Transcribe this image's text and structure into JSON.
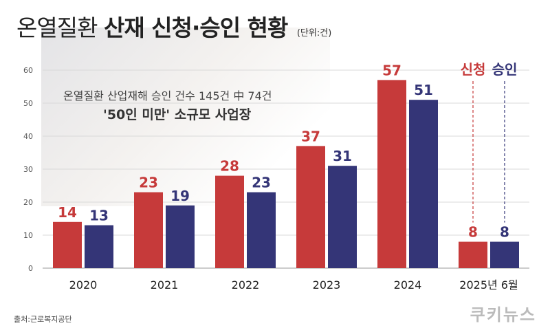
{
  "header": {
    "title_light": "온열질환",
    "title_bold": "산재 신청·승인 현황",
    "unit": "(단위:건)"
  },
  "annotation": {
    "line1": "온열질환 산업재해 승인 건수 145건 中 74건",
    "line2": "'50인 미만' 소규모 사업장"
  },
  "footer": {
    "source": "출처:근로복지공단",
    "logo": "쿠키뉴스"
  },
  "colors": {
    "apply": "#c63a3a",
    "approve": "#343577"
  },
  "chart_data": {
    "type": "bar",
    "categories": [
      "2020",
      "2021",
      "2022",
      "2023",
      "2024",
      "2025년 6월"
    ],
    "series": [
      {
        "name": "신청",
        "values": [
          14,
          23,
          28,
          37,
          57,
          8
        ]
      },
      {
        "name": "승인",
        "values": [
          13,
          19,
          23,
          31,
          51,
          8
        ]
      }
    ],
    "ylim": [
      0,
      60
    ],
    "yticks": [
      0,
      10,
      20,
      30,
      40,
      50,
      60
    ],
    "grid": true,
    "legend_position": "top-right"
  }
}
